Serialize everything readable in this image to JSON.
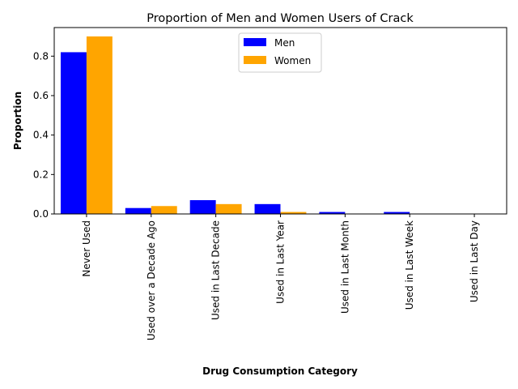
{
  "chart_data": {
    "type": "bar",
    "title": "Proportion of Men and Women Users of Crack",
    "xlabel": "Drug Consumption Category",
    "ylabel": "Proportion",
    "categories": [
      "Never Used",
      "Used over a Decade Ago",
      "Used in Last Decade",
      "Used in Last Year",
      "Used in Last Month",
      "Used in Last Week",
      "Used in Last Day"
    ],
    "series": [
      {
        "name": "Men",
        "color": "#0000ff",
        "values": [
          0.82,
          0.03,
          0.07,
          0.05,
          0.01,
          0.01,
          0.0
        ]
      },
      {
        "name": "Women",
        "color": "#ffa500",
        "values": [
          0.9,
          0.04,
          0.05,
          0.01,
          0.0,
          0.0,
          0.0
        ]
      }
    ],
    "ylim": [
      0,
      0.945
    ],
    "yticks": [
      "0.0",
      "0.2",
      "0.4",
      "0.6",
      "0.8"
    ],
    "grid": false,
    "legend_position": "top-center"
  }
}
